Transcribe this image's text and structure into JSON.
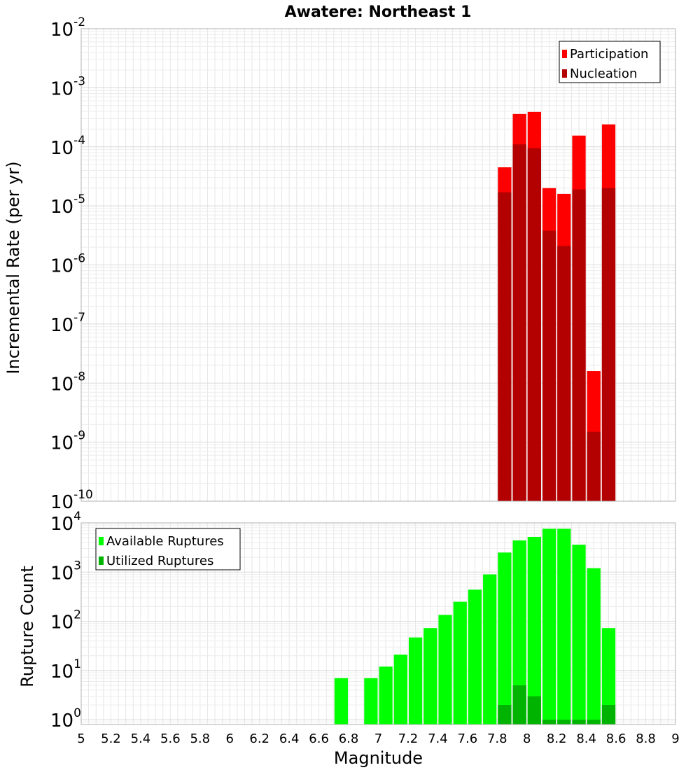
{
  "chart_data": [
    {
      "type": "bar",
      "title": "Awatere: Northeast 1",
      "xlabel": "",
      "ylabel": "Incremental Rate (per yr)",
      "yscale": "log",
      "xlim": [
        5,
        9
      ],
      "ylim": [
        1e-10,
        0.01
      ],
      "grid": true,
      "legend_position": "top-right",
      "y_ticks": [
        {
          "base": "10",
          "exp": "-10",
          "value": 1e-10
        },
        {
          "base": "10",
          "exp": "-9",
          "value": 1e-09
        },
        {
          "base": "10",
          "exp": "-8",
          "value": 1e-08
        },
        {
          "base": "10",
          "exp": "-7",
          "value": 1e-07
        },
        {
          "base": "10",
          "exp": "-6",
          "value": 1e-06
        },
        {
          "base": "10",
          "exp": "-5",
          "value": 1e-05
        },
        {
          "base": "10",
          "exp": "-4",
          "value": 0.0001
        },
        {
          "base": "10",
          "exp": "-3",
          "value": 0.001
        },
        {
          "base": "10",
          "exp": "-2",
          "value": 0.01
        }
      ],
      "series": [
        {
          "name": "Participation",
          "color": "#ff0000",
          "x": [
            7.85,
            7.95,
            8.05,
            8.15,
            8.25,
            8.35,
            8.45,
            8.55
          ],
          "values": [
            4.5e-05,
            0.00036,
            0.00039,
            2e-05,
            1.6e-05,
            0.000155,
            1.6e-08,
            0.00024
          ]
        },
        {
          "name": "Nucleation",
          "color": "#b30000",
          "x": [
            7.85,
            7.95,
            8.05,
            8.15,
            8.25,
            8.35,
            8.45,
            8.55
          ],
          "values": [
            1.7e-05,
            0.00011,
            9.5e-05,
            3.8e-06,
            2.1e-06,
            1.9e-05,
            1.5e-09,
            2e-05
          ]
        }
      ]
    },
    {
      "type": "bar",
      "title": "",
      "xlabel": "Magnitude",
      "ylabel": "Rupture Count",
      "yscale": "log",
      "xlim": [
        5,
        9
      ],
      "ylim": [
        0.8,
        10000
      ],
      "grid": true,
      "legend_position": "top-left",
      "x_ticks": [
        "5",
        "5.2",
        "5.4",
        "5.6",
        "5.8",
        "6",
        "6.2",
        "6.4",
        "6.6",
        "6.8",
        "7",
        "7.2",
        "7.4",
        "7.6",
        "7.8",
        "8",
        "8.2",
        "8.4",
        "8.6",
        "8.8",
        "9"
      ],
      "y_ticks": [
        {
          "base": "10",
          "exp": "0",
          "value": 1
        },
        {
          "base": "10",
          "exp": "1",
          "value": 10
        },
        {
          "base": "10",
          "exp": "2",
          "value": 100
        },
        {
          "base": "10",
          "exp": "3",
          "value": 1000
        },
        {
          "base": "10",
          "exp": "4",
          "value": 10000
        }
      ],
      "series": [
        {
          "name": "Available Ruptures",
          "color": "#00ff00",
          "x": [
            6.75,
            6.95,
            7.05,
            7.15,
            7.25,
            7.35,
            7.45,
            7.55,
            7.65,
            7.75,
            7.85,
            7.95,
            8.05,
            8.15,
            8.25,
            8.35,
            8.45,
            8.55
          ],
          "values": [
            7,
            7,
            12,
            21,
            47,
            73,
            135,
            250,
            440,
            900,
            2500,
            4400,
            5200,
            7600,
            7600,
            3600,
            1200,
            73
          ]
        },
        {
          "name": "Utilized Ruptures",
          "color": "#00b300",
          "x": [
            7.85,
            7.95,
            8.05,
            8.15,
            8.25,
            8.35,
            8.45,
            8.55
          ],
          "values": [
            2,
            5,
            3,
            1,
            1,
            1,
            1,
            2
          ]
        }
      ]
    }
  ]
}
